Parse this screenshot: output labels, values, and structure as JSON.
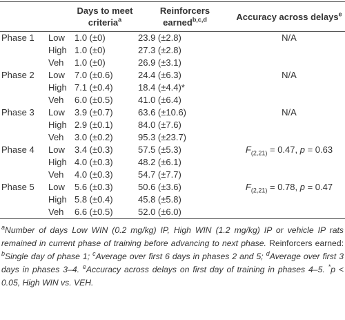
{
  "table": {
    "headers": [
      {
        "text": "Days to meet criteria",
        "sup": "a"
      },
      {
        "text": "Reinforcers earned",
        "sup": "b,c,d"
      },
      {
        "text": "Accuracy across delays",
        "sup": "e"
      }
    ],
    "groups": [
      {
        "phase": "Phase 1",
        "accuracy": "N/A",
        "rows": [
          {
            "level": "Low",
            "days": "1.0 (±0)",
            "reinforcers": "23.9 (±2.8)"
          },
          {
            "level": "High",
            "days": "1.0 (±0)",
            "reinforcers": "27.3 (±2.8)"
          },
          {
            "level": "Veh",
            "days": "1.0 (±0)",
            "reinforcers": "26.9 (±3.1)"
          }
        ]
      },
      {
        "phase": "Phase 2",
        "accuracy": "N/A",
        "rows": [
          {
            "level": "Low",
            "days": "7.0 (±0.6)",
            "reinforcers": "24.4 (±6.3)"
          },
          {
            "level": "High",
            "days": "7.1 (±0.4)",
            "reinforcers": "18.4 (±4.4)*"
          },
          {
            "level": "Veh",
            "days": "6.0 (±0.5)",
            "reinforcers": "41.0 (±6.4)"
          }
        ]
      },
      {
        "phase": "Phase 3",
        "accuracy": "N/A",
        "rows": [
          {
            "level": "Low",
            "days": "3.9 (±0.7)",
            "reinforcers": "63.6 (±10.6)"
          },
          {
            "level": "High",
            "days": "2.9 (±0.1)",
            "reinforcers": "84.0 (±7.6)"
          },
          {
            "level": "Veh",
            "days": "3.0 (±0.2)",
            "reinforcers": "95.3 (±23.7)"
          }
        ]
      },
      {
        "phase": "Phase 4",
        "accuracy": {
          "stat": "F",
          "df": "(2,21)",
          "stat_value": " = 0.47, ",
          "p_symbol": "p",
          "p_value": " = 0.63"
        },
        "rows": [
          {
            "level": "Low",
            "days": "3.4 (±0.3)",
            "reinforcers": "57.5 (±5.3)"
          },
          {
            "level": "High",
            "days": "4.0 (±0.3)",
            "reinforcers": "48.2 (±6.1)"
          },
          {
            "level": "Veh",
            "days": "4.0 (±0.3)",
            "reinforcers": "54.7 (±7.7)"
          }
        ]
      },
      {
        "phase": "Phase 5",
        "accuracy": {
          "stat": "F",
          "df": "(2,21)",
          "stat_value": " = 0.78, ",
          "p_symbol": "p",
          "p_value": " = 0.47"
        },
        "rows": [
          {
            "level": "Low",
            "days": "5.6 (±0.3)",
            "reinforcers": "50.6 (±3.6)"
          },
          {
            "level": "High",
            "days": "5.8 (±0.4)",
            "reinforcers": "45.8 (±5.8)"
          },
          {
            "level": "Veh",
            "days": "6.6 (±0.5)",
            "reinforcers": "52.0 (±6.0)"
          }
        ]
      }
    ],
    "footnote": [
      {
        "text": "a",
        "style": "sup"
      },
      {
        "text": "Number of days Low WIN (0.2 mg/kg) IP, High WIN (1.2 mg/kg) IP or vehicle IP rats remained in current phase of training before advancing to next phase.",
        "style": "italic"
      },
      {
        "text": " Reinforcers earned: ",
        "style": "normal"
      },
      {
        "text": "b",
        "style": "sup"
      },
      {
        "text": "Single day of phase 1; ",
        "style": "italic"
      },
      {
        "text": "c",
        "style": "sup"
      },
      {
        "text": "Average over first 6 days in phases 2 and 5; ",
        "style": "italic"
      },
      {
        "text": "d",
        "style": "sup"
      },
      {
        "text": "Average over first 3 days in phases 3–4. ",
        "style": "italic"
      },
      {
        "text": "e",
        "style": "sup"
      },
      {
        "text": "Accuracy across delays on first day of training in phases 4–5. ",
        "style": "italic"
      },
      {
        "text": "*",
        "style": "sup"
      },
      {
        "text": "p < 0.05, High WIN vs. VEH.",
        "style": "italic"
      }
    ]
  }
}
